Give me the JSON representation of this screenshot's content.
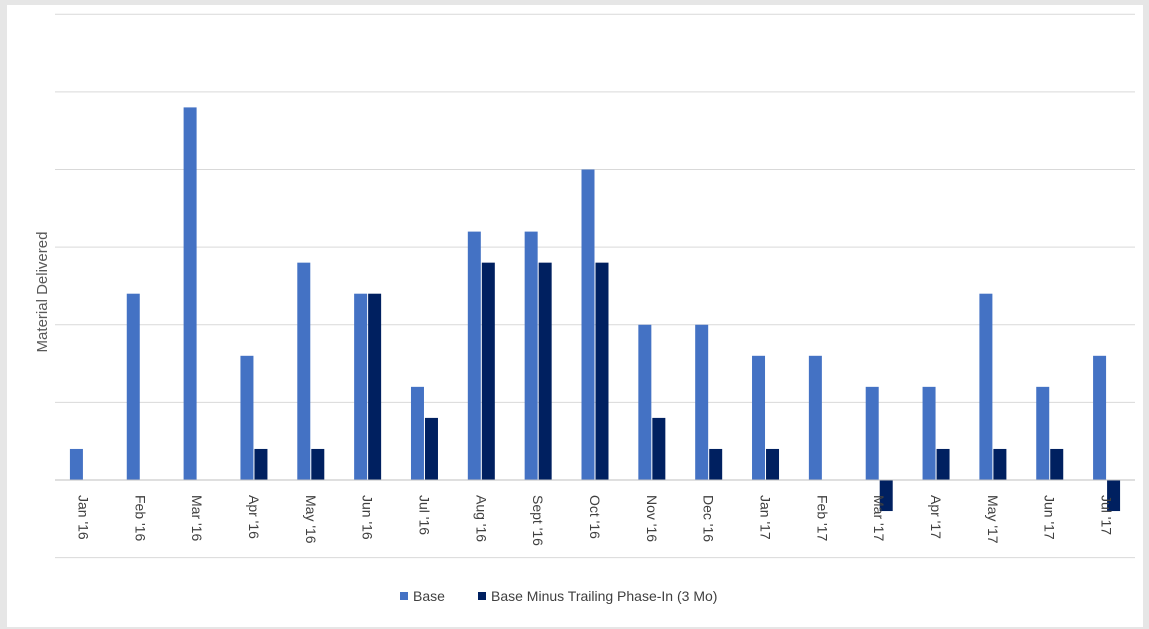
{
  "chart_data": {
    "type": "bar",
    "ylabel": "Material Delivered",
    "xlabel": "",
    "title": "",
    "categories": [
      "Jan '16",
      "Feb '16",
      "Mar '16",
      "Apr '16",
      "May '16",
      "Jun '16",
      "Jul '16",
      "Aug '16",
      "Sept '16",
      "Oct '16",
      "Nov '16",
      "Dec '16",
      "Jan '17",
      "Feb '17",
      "Mar '17",
      "Apr '17",
      "May '17",
      "Jun '17",
      "Jul '17"
    ],
    "series": [
      {
        "name": "Base",
        "color": "#4472c4",
        "values": [
          1,
          6,
          12,
          4,
          7,
          6,
          3,
          8,
          8,
          10,
          5,
          5,
          4,
          4,
          3,
          3,
          6,
          3,
          4
        ]
      },
      {
        "name": "Base Minus Trailing Phase-In (3 Mo)",
        "color": "#002060",
        "values": [
          0,
          0,
          0,
          1,
          1,
          6,
          2,
          7,
          7,
          7,
          2,
          1,
          1,
          0,
          -1,
          1,
          1,
          1,
          -1
        ]
      }
    ],
    "ylim": [
      -2.5,
      15
    ],
    "grid": true,
    "legend_position": "bottom"
  }
}
